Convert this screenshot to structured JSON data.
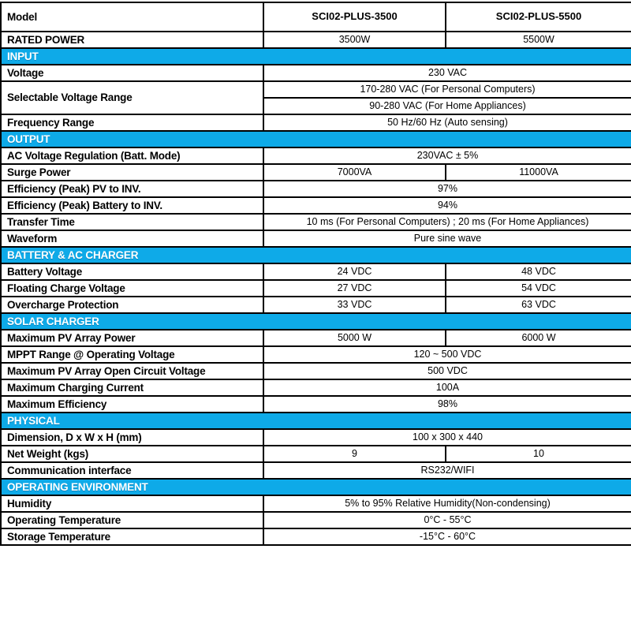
{
  "colors": {
    "section_bar": "#0eaae8",
    "section_text": "#ffffff",
    "border": "#000000"
  },
  "table": {
    "header": {
      "label": "Model",
      "model1": "SCI02-PLUS-3500",
      "model2": "SCI02-PLUS-5500"
    },
    "rows": [
      {
        "label": "RATED POWER",
        "values": [
          "3500W",
          "5500W"
        ]
      },
      {
        "section": "INPUT"
      },
      {
        "label": "Voltage",
        "span": "230 VAC"
      },
      {
        "label": "Selectable Voltage Range",
        "lines": [
          "170-280 VAC (For Personal Computers)",
          "90-280 VAC (For Home Appliances)"
        ]
      },
      {
        "label": "Frequency Range",
        "span": "50 Hz/60 Hz (Auto sensing)"
      },
      {
        "section": "OUTPUT"
      },
      {
        "label": "AC Voltage Regulation (Batt. Mode)",
        "span": "230VAC ± 5%"
      },
      {
        "label": "Surge Power",
        "values": [
          "7000VA",
          "11000VA"
        ]
      },
      {
        "label": "Efficiency (Peak) PV to INV.",
        "span": "97%"
      },
      {
        "label": "Efficiency (Peak) Battery to INV.",
        "span": "94%"
      },
      {
        "label": "Transfer Time",
        "span": "10 ms (For Personal Computers) ; 20 ms (For Home Appliances)"
      },
      {
        "label": "Waveform",
        "span": "Pure sine wave"
      },
      {
        "section": "BATTERY & AC CHARGER"
      },
      {
        "label": "Battery Voltage",
        "values": [
          "24 VDC",
          "48 VDC"
        ]
      },
      {
        "label": "Floating Charge Voltage",
        "values": [
          "27 VDC",
          "54 VDC"
        ]
      },
      {
        "label": "Overcharge Protection",
        "values": [
          "33 VDC",
          "63 VDC"
        ]
      },
      {
        "section": "SOLAR CHARGER"
      },
      {
        "label": "Maximum PV Array Power",
        "values": [
          "5000 W",
          "6000 W"
        ]
      },
      {
        "label": "MPPT Range @ Operating Voltage",
        "span": "120 ~ 500 VDC"
      },
      {
        "label": "Maximum PV Array Open Circuit Voltage",
        "span": "500 VDC"
      },
      {
        "label": "Maximum Charging Current",
        "span": "100A"
      },
      {
        "label": "Maximum Efficiency",
        "span": "98%"
      },
      {
        "section": "PHYSICAL"
      },
      {
        "label": "Dimension, D x W x H (mm)",
        "span": "100 x 300 x 440"
      },
      {
        "label": "Net Weight (kgs)",
        "values": [
          "9",
          "10"
        ]
      },
      {
        "label": "Communication interface",
        "span": "RS232/WIFI"
      },
      {
        "section": "OPERATING ENVIRONMENT"
      },
      {
        "label": "Humidity",
        "span": "5% to 95% Relative Humidity(Non-condensing)"
      },
      {
        "label": "Operating Temperature",
        "span": "0°C - 55°C"
      },
      {
        "label": "Storage Temperature",
        "span": "-15°C - 60°C"
      }
    ]
  }
}
